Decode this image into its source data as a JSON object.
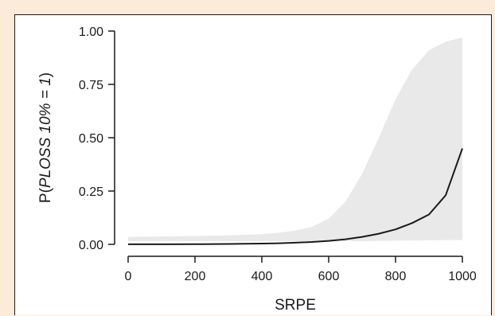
{
  "chart_data": {
    "type": "line",
    "title": "",
    "xlabel": "SRPE",
    "ylabel_prefix": "P(",
    "ylabel_italic": "PLOSS 10% = 1",
    "ylabel_suffix": ")",
    "xlim": [
      0,
      1000
    ],
    "ylim": [
      0,
      1
    ],
    "xticks": [
      0,
      200,
      400,
      600,
      800,
      1000
    ],
    "xtick_labels": [
      "0",
      "200",
      "400",
      "600",
      "800",
      "1000"
    ],
    "yticks": [
      0,
      0.25,
      0.5,
      0.75,
      1.0
    ],
    "ytick_labels": [
      "0.00",
      "0.25",
      "0.50",
      "0.75",
      "1.00"
    ],
    "grid": false,
    "series": [
      {
        "x": [
          0,
          100,
          200,
          300,
          400,
          450,
          500,
          550,
          600,
          650,
          700,
          750,
          800,
          850,
          900,
          950,
          1000
        ],
        "y": [
          0.0002,
          0.0004,
          0.0008,
          0.0017,
          0.0036,
          0.0053,
          0.0077,
          0.0113,
          0.0166,
          0.024,
          0.035,
          0.05,
          0.07,
          0.1,
          0.14,
          0.23,
          0.45
        ],
        "line_color": "#1a1a1a"
      }
    ],
    "confidence_band": {
      "x": [
        0,
        100,
        200,
        300,
        400,
        450,
        500,
        550,
        600,
        650,
        700,
        750,
        800,
        850,
        900,
        950,
        1000
      ],
      "lower": [
        0.015,
        0.015,
        0.015,
        0.015,
        0.015,
        0.015,
        0.015,
        0.015,
        0.015,
        0.015,
        0.015,
        0.016,
        0.017,
        0.018,
        0.019,
        0.02,
        0.02
      ],
      "upper": [
        0.035,
        0.037,
        0.039,
        0.042,
        0.048,
        0.054,
        0.064,
        0.082,
        0.12,
        0.2,
        0.33,
        0.5,
        0.68,
        0.82,
        0.91,
        0.95,
        0.97
      ],
      "fill_color": "#e9e9e9"
    }
  }
}
